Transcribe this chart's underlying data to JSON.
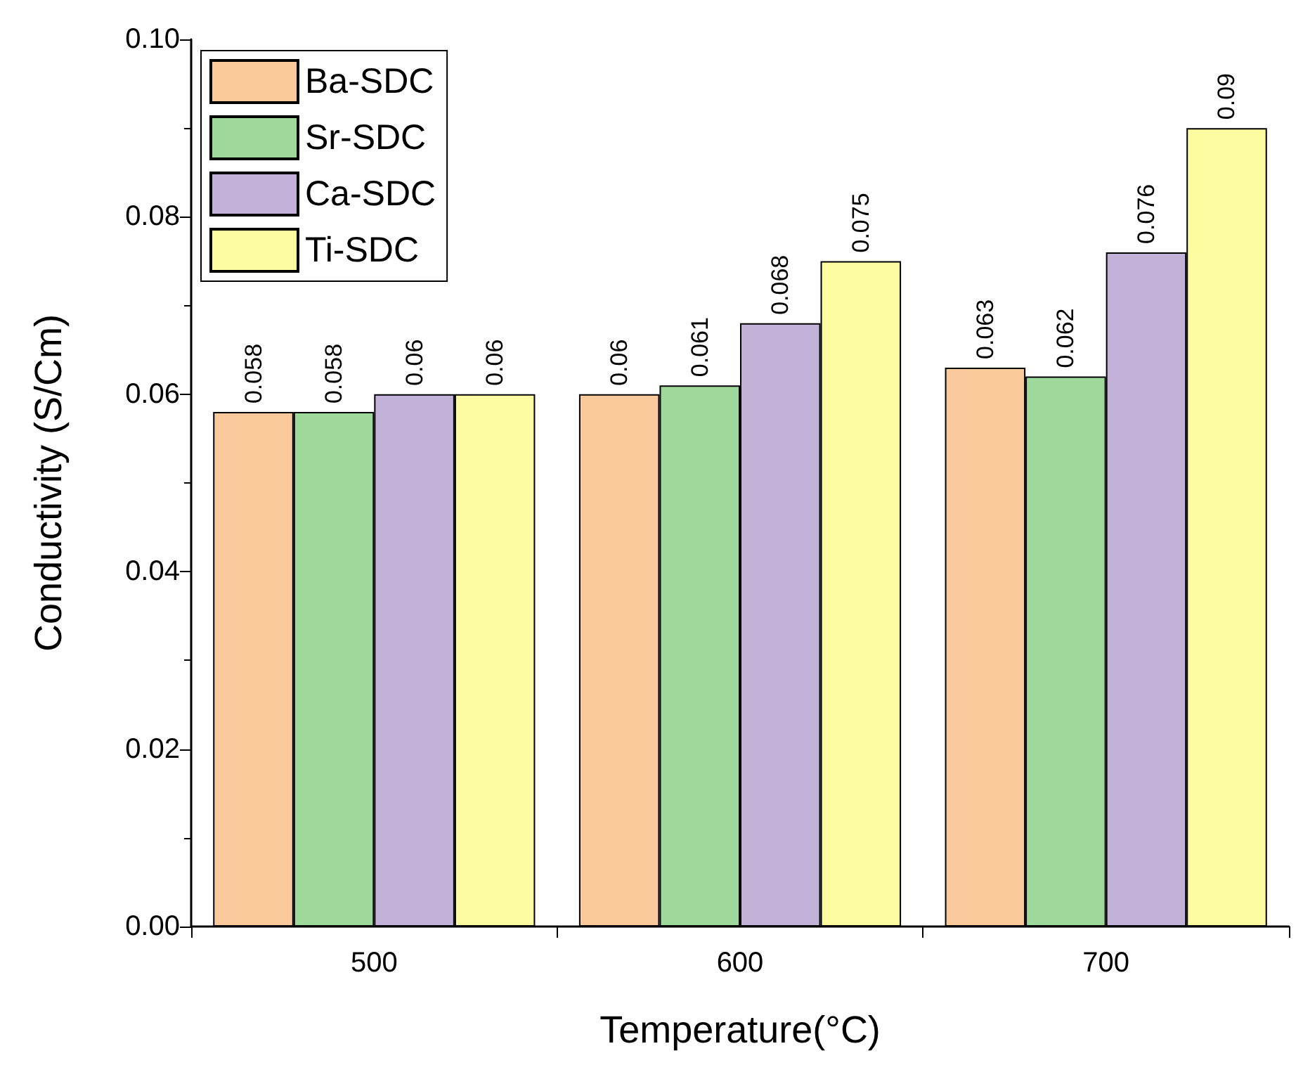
{
  "chart_data": {
    "type": "bar",
    "xlabel": "Temperature(°C)",
    "ylabel": "Conductivity (S/Cm)",
    "categories": [
      "500",
      "600",
      "700"
    ],
    "series": [
      {
        "name": "Ba-SDC",
        "color": "#f9c89b",
        "values": [
          0.058,
          0.06,
          0.063
        ]
      },
      {
        "name": "Sr-SDC",
        "color": "#9ed99b",
        "values": [
          0.058,
          0.061,
          0.062
        ]
      },
      {
        "name": "Ca-SDC",
        "color": "#c3b2d8",
        "values": [
          0.06,
          0.068,
          0.076
        ]
      },
      {
        "name": "Ti-SDC",
        "color": "#fdfca0",
        "values": [
          0.06,
          0.075,
          0.09
        ]
      }
    ],
    "ylim": [
      0,
      0.1
    ],
    "yticks": [
      {
        "value": 0,
        "label": "0.00"
      },
      {
        "value": 0.02,
        "label": "0.02"
      },
      {
        "value": 0.04,
        "label": "0.04"
      },
      {
        "value": 0.06,
        "label": "0.06"
      },
      {
        "value": 0.08,
        "label": "0.08"
      },
      {
        "value": 0.1,
        "label": "0.10"
      }
    ],
    "data_labels": true,
    "legend": "top left",
    "grid": false
  }
}
